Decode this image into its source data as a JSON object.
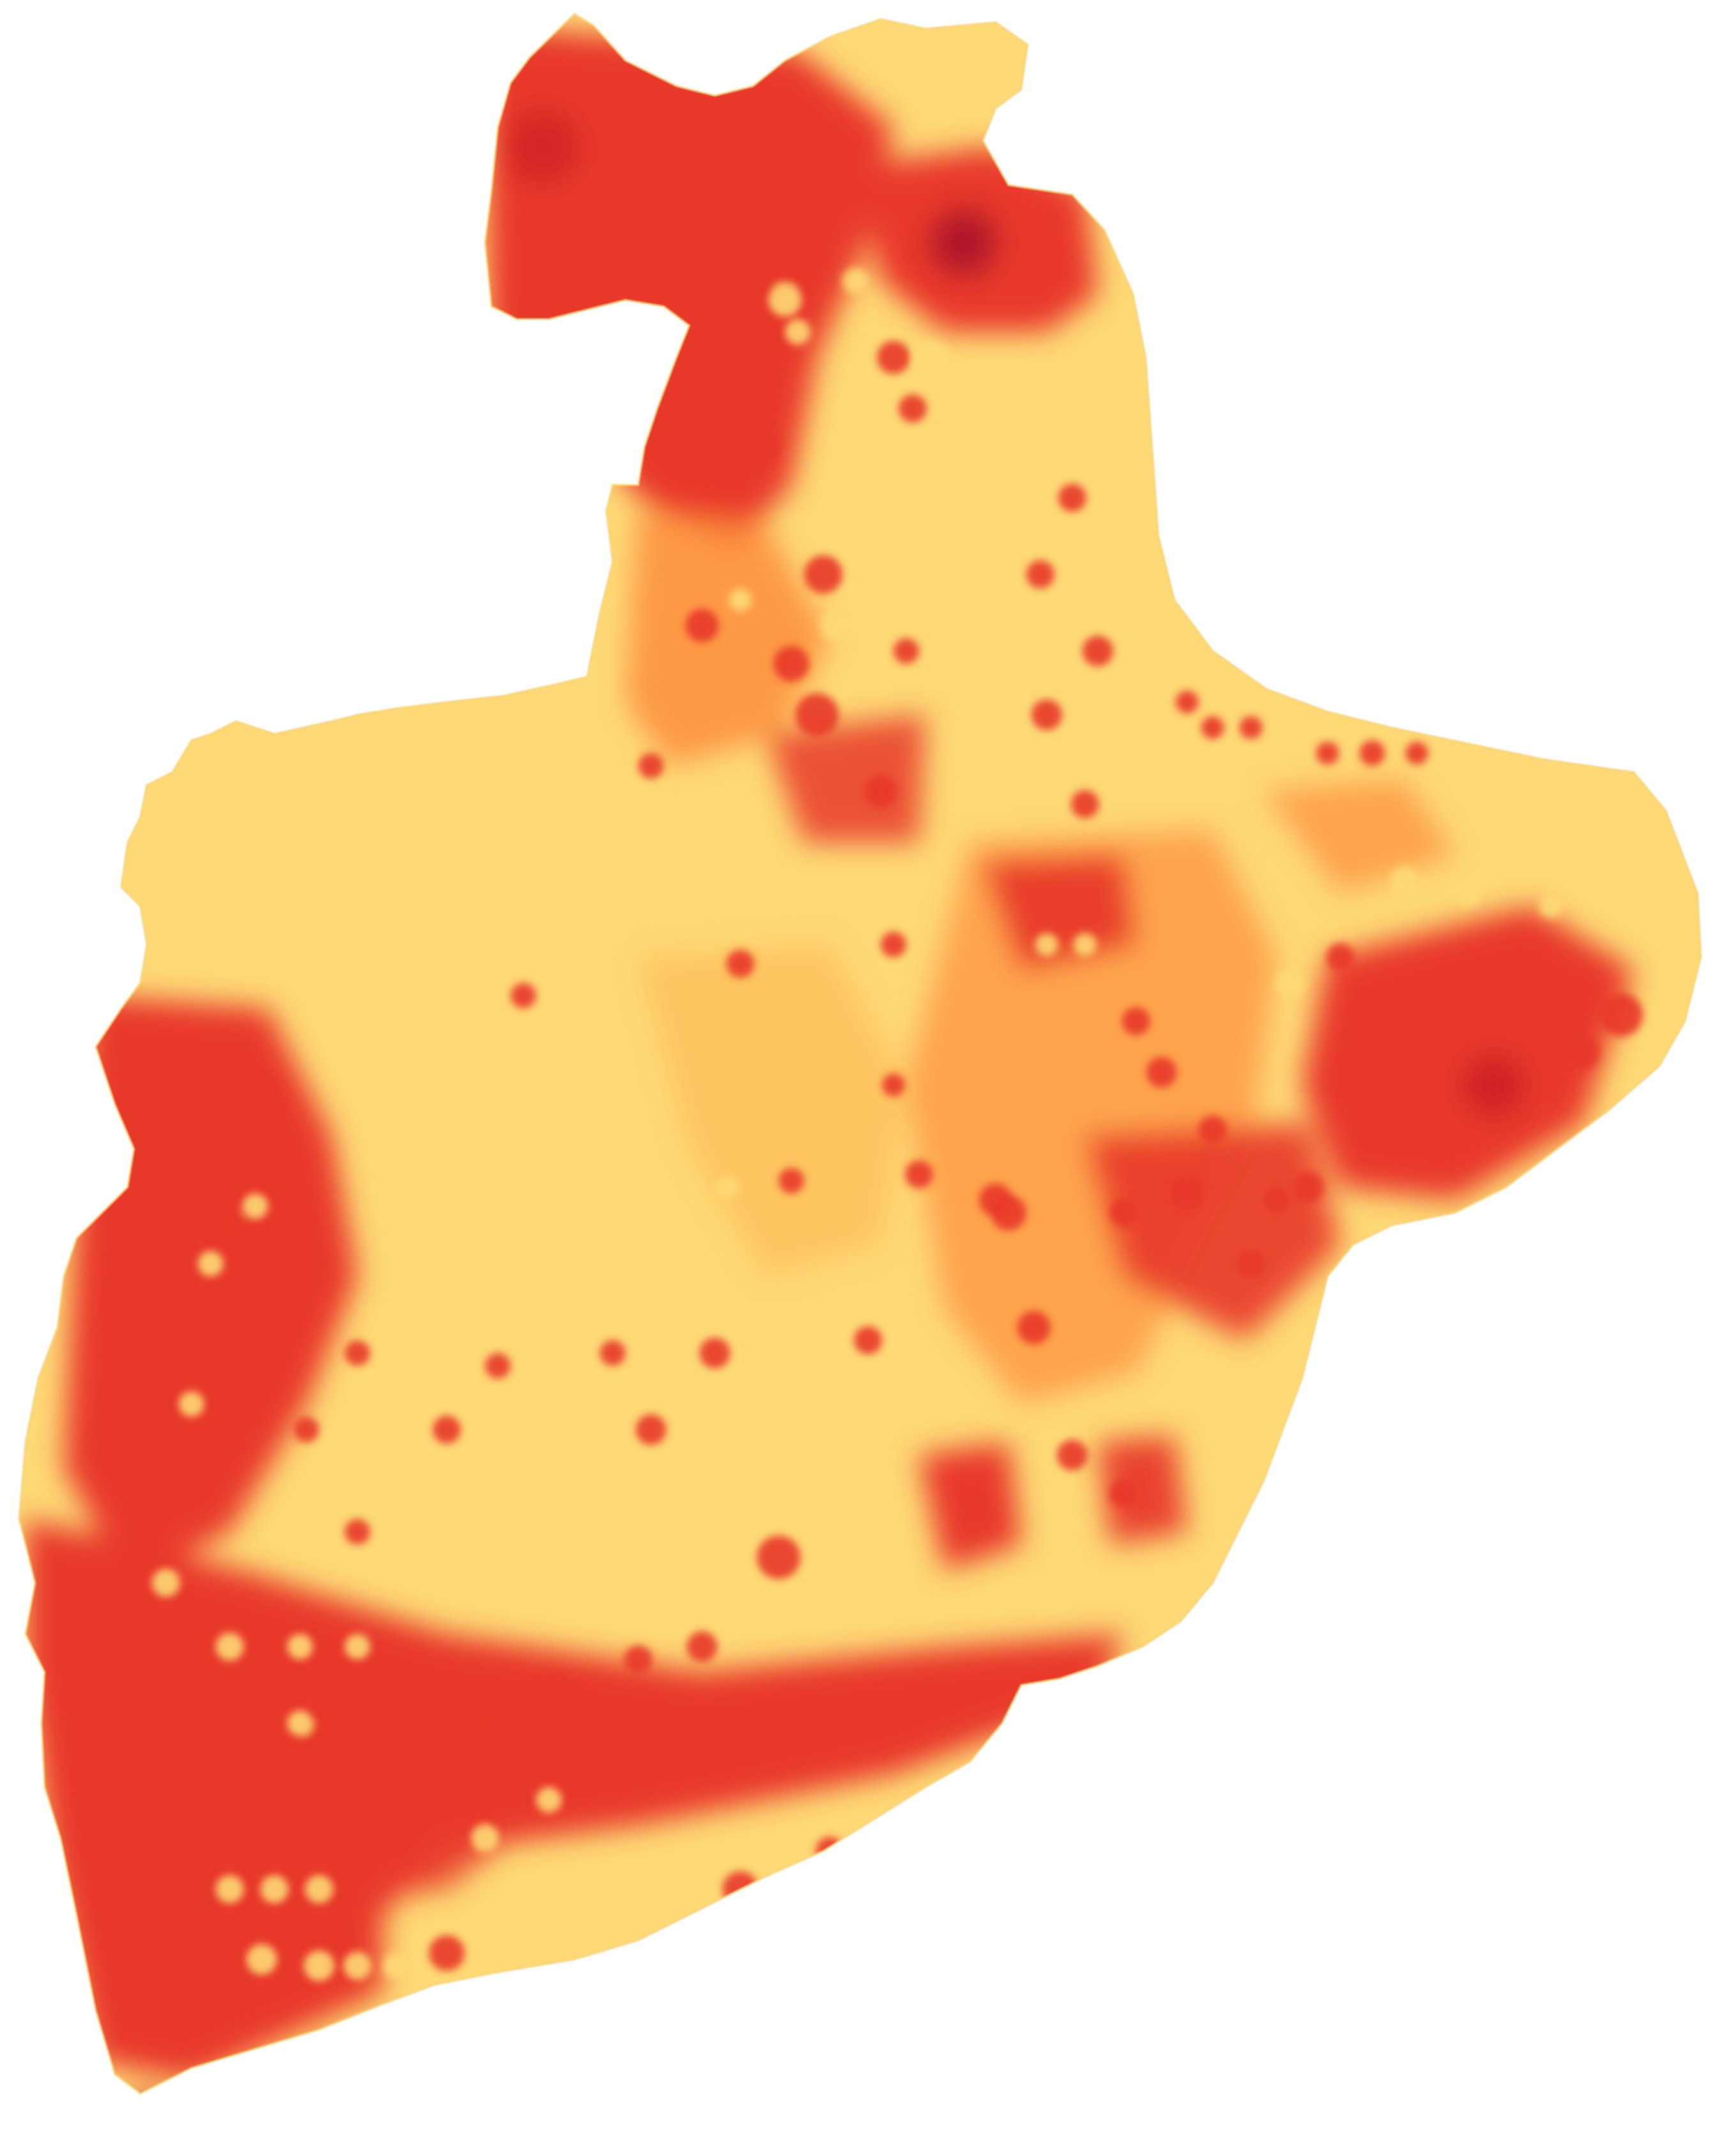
{
  "map": {
    "type": "choropleth-heatmap",
    "colors": {
      "low": "#fed976",
      "mid_low": "#feb24c",
      "mid": "#fd8d3c",
      "high": "#e8392a",
      "very_high": "#c81d25",
      "peak": "#9e0e2a",
      "background": "#ffffff"
    },
    "legend": null
  }
}
